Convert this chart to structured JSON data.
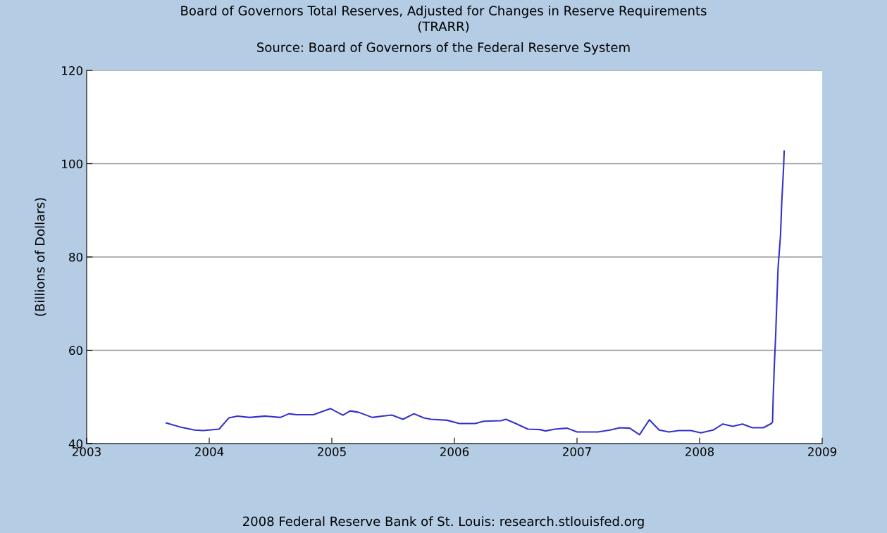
{
  "chart_data": {
    "type": "line",
    "title": "Board of Governors Total Reserves, Adjusted for Changes in Reserve Requirements\n(TRARR)",
    "subtitle": "Source: Board of Governors of the Federal Reserve System",
    "ylabel": "(Billions of Dollars)",
    "annotations": [
      "2008 Federal Reserve Bank of St. Louis: research.stlouisfed.org"
    ],
    "series": [
      {
        "color": "#3333cc",
        "x": [
          2003.65,
          2003.77,
          2003.88,
          2003.95,
          2004.08,
          2004.16,
          2004.23,
          2004.33,
          2004.46,
          2004.58,
          2004.65,
          2004.71,
          2004.85,
          2004.99,
          2005.09,
          2005.15,
          2005.22,
          2005.33,
          2005.41,
          2005.49,
          2005.58,
          2005.67,
          2005.75,
          2005.81,
          2005.94,
          2006.04,
          2006.17,
          2006.24,
          2006.38,
          2006.42,
          2006.5,
          2006.6,
          2006.7,
          2006.74,
          2006.82,
          2006.92,
          2007.0,
          2007.17,
          2007.27,
          2007.35,
          2007.43,
          2007.51,
          2007.59,
          2007.67,
          2007.75,
          2007.83,
          2007.93,
          2008.01,
          2008.11,
          2008.19,
          2008.27,
          2008.35,
          2008.43,
          2008.52,
          2008.585,
          2008.595,
          2008.6,
          2008.61,
          2008.62,
          2008.63,
          2008.64,
          2008.66,
          2008.67,
          2008.685,
          2008.69
        ],
        "values": [
          44.4,
          43.5,
          42.9,
          42.8,
          43.1,
          45.5,
          45.9,
          45.6,
          45.9,
          45.6,
          46.4,
          46.2,
          46.2,
          47.5,
          46.1,
          47.0,
          46.7,
          45.6,
          45.9,
          46.1,
          45.2,
          46.4,
          45.5,
          45.2,
          45.0,
          44.3,
          44.3,
          44.8,
          44.9,
          45.2,
          44.3,
          43.1,
          43.0,
          42.7,
          43.1,
          43.3,
          42.5,
          42.5,
          42.9,
          43.4,
          43.3,
          41.9,
          45.1,
          42.9,
          42.5,
          42.8,
          42.8,
          42.3,
          42.9,
          44.2,
          43.7,
          44.2,
          43.4,
          43.4,
          44.3,
          44.6,
          49.5,
          57.0,
          62.8,
          70.3,
          77.6,
          84.6,
          91.6,
          99.1,
          102.7
        ]
      }
    ],
    "xlim": [
      2003,
      2009
    ],
    "xticks": [
      2003,
      2004,
      2005,
      2006,
      2007,
      2008,
      2009
    ],
    "ylim": [
      40,
      120
    ],
    "yticks": [
      40,
      60,
      80,
      100,
      120
    ],
    "grid": "y",
    "legend": false
  }
}
